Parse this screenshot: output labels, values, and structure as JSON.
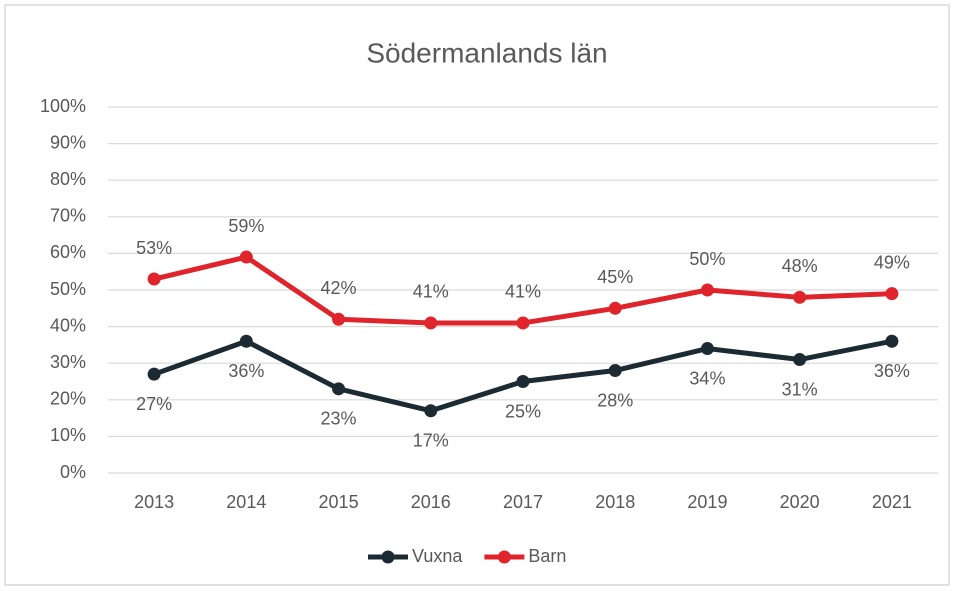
{
  "chart_data": {
    "type": "line",
    "title": "Södermanlands län",
    "categories": [
      "2013",
      "2014",
      "2015",
      "2016",
      "2017",
      "2018",
      "2019",
      "2020",
      "2021"
    ],
    "series": [
      {
        "name": "Vuxna",
        "color": "#1c2b33",
        "values": [
          27,
          36,
          23,
          17,
          25,
          28,
          34,
          31,
          36
        ],
        "value_labels": [
          "27%",
          "36%",
          "23%",
          "17%",
          "25%",
          "28%",
          "34%",
          "31%",
          "36%"
        ]
      },
      {
        "name": "Barn",
        "color": "#e0242c",
        "values": [
          53,
          59,
          42,
          41,
          41,
          45,
          50,
          48,
          49
        ],
        "value_labels": [
          "53%",
          "59%",
          "42%",
          "41%",
          "41%",
          "45%",
          "50%",
          "48%",
          "49%"
        ]
      }
    ],
    "ylim": [
      0,
      100
    ],
    "yticks": [
      {
        "value": 0,
        "label": "0%"
      },
      {
        "value": 10,
        "label": "10%"
      },
      {
        "value": 20,
        "label": "20%"
      },
      {
        "value": 30,
        "label": "30%"
      },
      {
        "value": 40,
        "label": "40%"
      },
      {
        "value": 50,
        "label": "50%"
      },
      {
        "value": 60,
        "label": "60%"
      },
      {
        "value": 70,
        "label": "70%"
      },
      {
        "value": 80,
        "label": "80%"
      },
      {
        "value": 90,
        "label": "90%"
      },
      {
        "value": 100,
        "label": "100%"
      }
    ],
    "grid": true,
    "legend": "bottom"
  }
}
